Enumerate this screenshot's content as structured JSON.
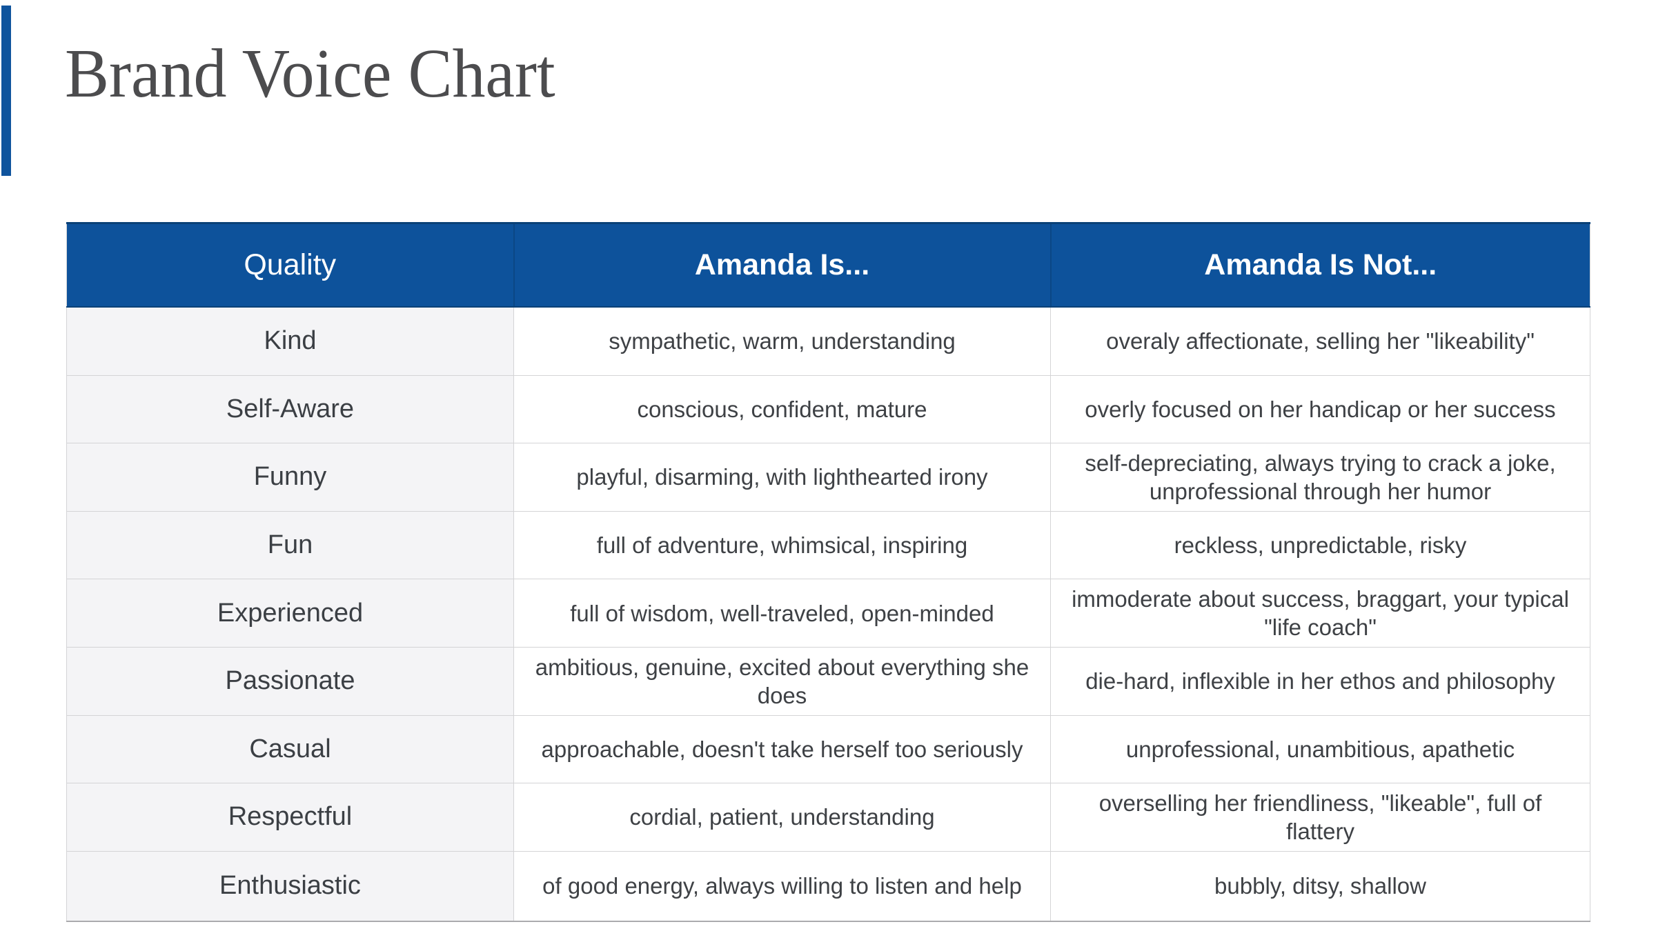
{
  "slide": {
    "title": "Brand Voice Chart"
  },
  "colors": {
    "accent_blue": "#0f549d",
    "header_background": "#0d529b",
    "header_text": "#ffffff",
    "first_column_background": "#f4f4f6",
    "body_text": "#3e4145",
    "title_text": "#4c4c4e"
  },
  "table": {
    "columns": [
      {
        "label": "Quality"
      },
      {
        "label": "Amanda Is..."
      },
      {
        "label": "Amanda Is Not..."
      }
    ],
    "rows": [
      {
        "quality": "Kind",
        "is": "sympathetic, warm, understanding",
        "is_not": "overaly affectionate, selling her \"likeability\""
      },
      {
        "quality": "Self-Aware",
        "is": "conscious, confident, mature",
        "is_not": "overly focused on her handicap or her success"
      },
      {
        "quality": "Funny",
        "is": "playful, disarming, with lighthearted irony",
        "is_not": "self-depreciating, always trying to crack a joke, unprofessional through her humor"
      },
      {
        "quality": "Fun",
        "is": "full of adventure, whimsical, inspiring",
        "is_not": "reckless, unpredictable, risky"
      },
      {
        "quality": "Experienced",
        "is": "full of wisdom, well-traveled, open-minded",
        "is_not": "immoderate about success, braggart, your typical \"life coach\""
      },
      {
        "quality": "Passionate",
        "is": "ambitious, genuine, excited about everything she does",
        "is_not": "die-hard, inflexible in her ethos and philosophy"
      },
      {
        "quality": "Casual",
        "is": "approachable, doesn't take herself too seriously",
        "is_not": "unprofessional, unambitious, apathetic"
      },
      {
        "quality": "Respectful",
        "is": "cordial, patient, understanding",
        "is_not": "overselling her friendliness, \"likeable\", full of flattery"
      },
      {
        "quality": "Enthusiastic",
        "is": "of good energy, always willing to listen and help",
        "is_not": "bubbly, ditsy, shallow"
      }
    ]
  }
}
